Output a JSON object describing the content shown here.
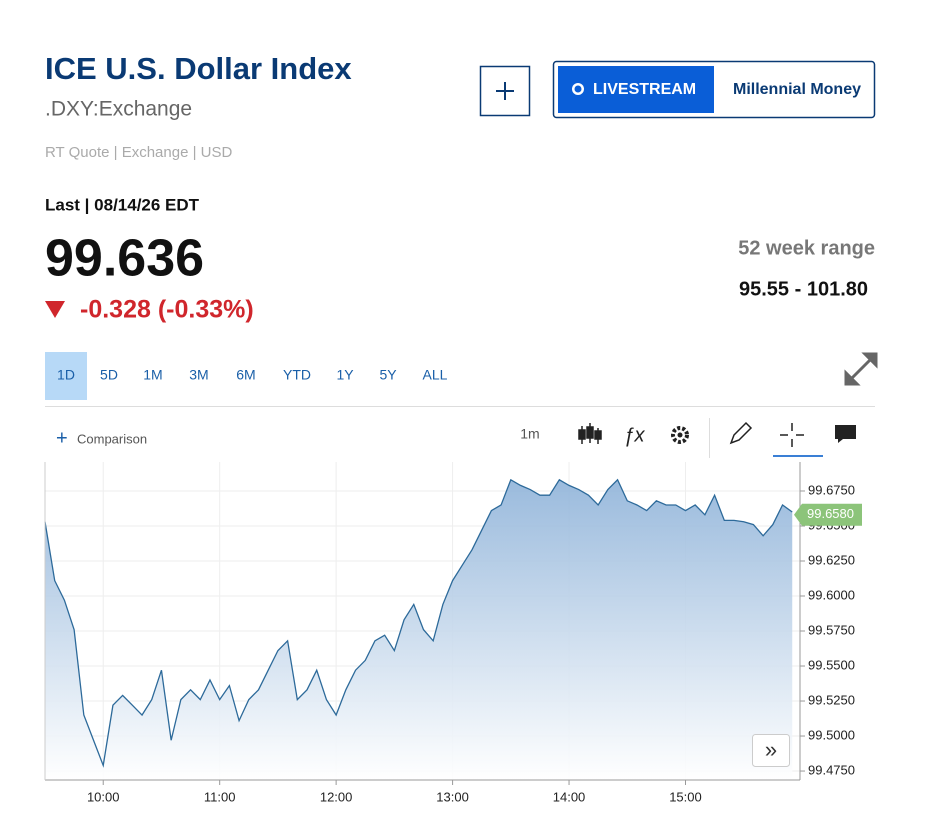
{
  "header": {
    "title": "ICE U.S. Dollar Index",
    "symbol": ".DXY:Exchange",
    "quote_info": "RT Quote | Exchange | USD",
    "last_info": "Last | 08/14/26 EDT",
    "price": "99.636",
    "change": "-0.328 (-0.33%)",
    "range_label": "52 week range",
    "range_value": "95.55 - 101.80",
    "livestream": "LIVESTREAM",
    "show": "Millennial Money"
  },
  "tabs": [
    "1D",
    "5D",
    "1M",
    "3M",
    "6M",
    "YTD",
    "1Y",
    "5Y",
    "ALL"
  ],
  "toolbar": {
    "comparison": "Comparison",
    "interval": "1m"
  },
  "chart_data": {
    "type": "area",
    "color": "#2d6a9a",
    "x": [
      570,
      575,
      580,
      585,
      590,
      595,
      600,
      605,
      610,
      615,
      620,
      625,
      630,
      635,
      640,
      645,
      650,
      655,
      660,
      665,
      670,
      675,
      680,
      685,
      690,
      695,
      700,
      705,
      710,
      715,
      720,
      725,
      730,
      735,
      740,
      745,
      750,
      755,
      760,
      765,
      770,
      775,
      780,
      785,
      790,
      795,
      800,
      805,
      810,
      815,
      820,
      825,
      830,
      835,
      840,
      845,
      850,
      855,
      860,
      865,
      870,
      875,
      880,
      885,
      890,
      895,
      900,
      905,
      910,
      915,
      920,
      925,
      930,
      935,
      940,
      945,
      950,
      955
    ],
    "values": [
      99.653,
      99.611,
      99.597,
      99.576,
      99.515,
      99.497,
      99.479,
      99.522,
      99.529,
      99.522,
      99.515,
      99.526,
      99.547,
      99.497,
      99.526,
      99.533,
      99.526,
      99.54,
      99.526,
      99.536,
      99.511,
      99.526,
      99.533,
      99.547,
      99.561,
      99.568,
      99.526,
      99.533,
      99.547,
      99.526,
      99.515,
      99.533,
      99.547,
      99.554,
      99.568,
      99.572,
      99.561,
      99.583,
      99.594,
      99.576,
      99.568,
      99.594,
      99.611,
      99.622,
      99.633,
      99.647,
      99.661,
      99.665,
      99.683,
      99.679,
      99.676,
      99.672,
      99.672,
      99.683,
      99.679,
      99.676,
      99.672,
      99.665,
      99.676,
      99.683,
      99.668,
      99.665,
      99.661,
      99.668,
      99.665,
      99.665,
      99.661,
      99.665,
      99.658,
      99.672,
      99.654,
      99.654,
      99.653,
      99.651,
      99.643,
      99.651,
      99.665,
      99.66
    ],
    "current_value": 99.658,
    "current_value_label": "99.6580",
    "xlim": [
      570,
      959
    ],
    "ylim": [
      99.4686,
      99.6957
    ],
    "xticks": [
      {
        "value": 600,
        "label": "10:00"
      },
      {
        "value": 660,
        "label": "11:00"
      },
      {
        "value": 720,
        "label": "12:00"
      },
      {
        "value": 780,
        "label": "13:00"
      },
      {
        "value": 840,
        "label": "14:00"
      },
      {
        "value": 900,
        "label": "15:00"
      }
    ],
    "yticks": [
      {
        "value": 99.475,
        "label": "99.4750"
      },
      {
        "value": 99.5,
        "label": "99.5000"
      },
      {
        "value": 99.525,
        "label": "99.5250"
      },
      {
        "value": 99.55,
        "label": "99.5500"
      },
      {
        "value": 99.575,
        "label": "99.5750"
      },
      {
        "value": 99.6,
        "label": "99.6000"
      },
      {
        "value": 99.625,
        "label": "99.6250"
      },
      {
        "value": 99.65,
        "label": "99.6500"
      },
      {
        "value": 99.675,
        "label": "99.6750"
      }
    ],
    "grid": true
  }
}
